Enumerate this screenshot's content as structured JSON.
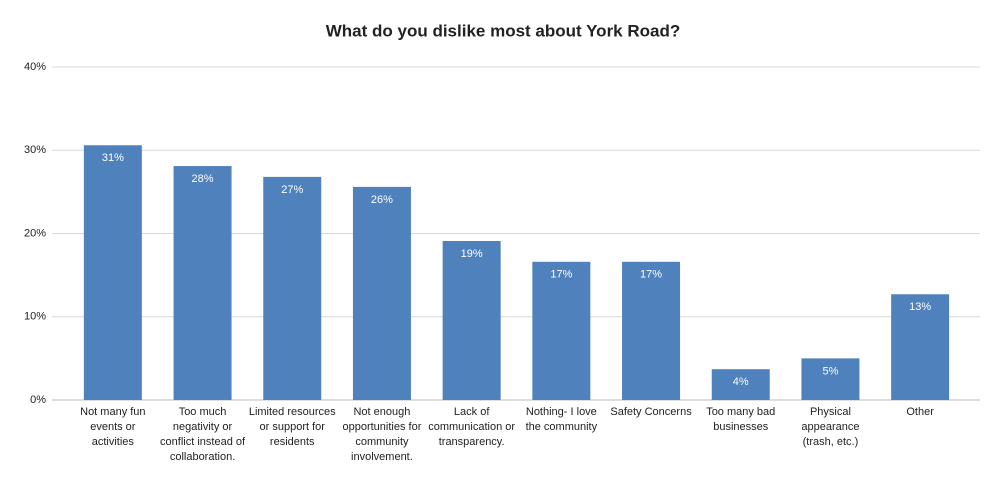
{
  "chart_data": {
    "type": "bar",
    "title": "What do you dislike most about York Road?",
    "categories": [
      "Not many fun events or activities",
      "Too much negativity or conflict instead of collaboration.",
      "Limited resources or support for residents",
      "Not enough opportunities for community involvement.",
      "Lack of communication or transparency.",
      "Nothing- I love the community",
      "Safety Concerns",
      "Too many bad businesses",
      "Physical appearance (trash, etc.)",
      "Other"
    ],
    "values": [
      30.6,
      28.1,
      26.8,
      25.6,
      19.1,
      16.6,
      16.6,
      3.7,
      5.0,
      12.7
    ],
    "value_labels": [
      "31%",
      "28%",
      "27%",
      "26%",
      "19%",
      "17%",
      "17%",
      "4%",
      "5%",
      "13%"
    ],
    "color": "#4f81bd",
    "ylim": [
      0,
      40
    ],
    "yticks": [
      {
        "value": 0,
        "label": "0%"
      },
      {
        "value": 10,
        "label": "10%"
      },
      {
        "value": 20,
        "label": "20%"
      },
      {
        "value": 30,
        "label": "30%"
      },
      {
        "value": 40,
        "label": "40%"
      }
    ],
    "grid": true
  }
}
